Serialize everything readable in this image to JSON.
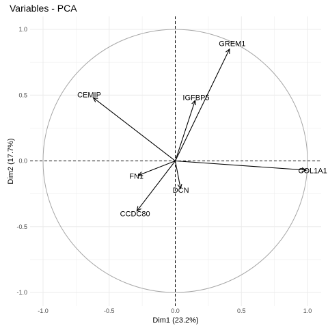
{
  "chart_data": {
    "type": "scatter",
    "subtype": "pca-correlation-circle",
    "title": "Variables - PCA",
    "xlabel": "Dim1 (23.2%)",
    "ylabel": "Dim2 (17.7%)",
    "xlim": [
      -1.0,
      1.0
    ],
    "ylim": [
      -1.0,
      1.0
    ],
    "xticks": [
      "-1.0",
      "-0.5",
      "0.0",
      "0.5",
      "1.0"
    ],
    "yticks": [
      "-1.0",
      "-0.5",
      "0.0",
      "0.5",
      "1.0"
    ],
    "grid": true,
    "unit_circle": true,
    "variables": [
      {
        "name": "GREM1",
        "x": 0.41,
        "y": 0.85
      },
      {
        "name": "CEMIP",
        "x": -0.62,
        "y": 0.48
      },
      {
        "name": "IGFBP5",
        "x": 0.15,
        "y": 0.46
      },
      {
        "name": "COL1A1",
        "x": 0.99,
        "y": -0.07
      },
      {
        "name": "FN1",
        "x": -0.28,
        "y": -0.11
      },
      {
        "name": "DCN",
        "x": 0.04,
        "y": -0.21
      },
      {
        "name": "CCDC80",
        "x": -0.29,
        "y": -0.38
      }
    ],
    "colors": {
      "arrow": "#000000",
      "circle": "#a6a6a6",
      "grid": "#ebebeb"
    }
  }
}
